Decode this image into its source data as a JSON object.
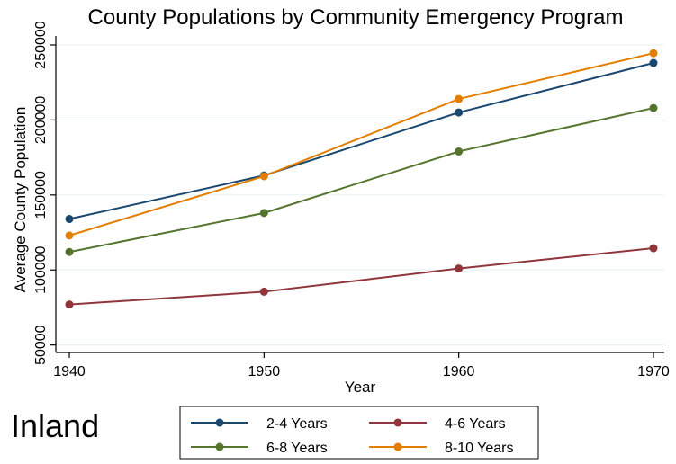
{
  "chart_data": {
    "type": "line",
    "title": "County Populations by Community Emergency Program",
    "xlabel": "Year",
    "ylabel": "Average County Population",
    "x": [
      1940,
      1950,
      1960,
      1970
    ],
    "x_ticks": [
      "1940",
      "1950",
      "1960",
      "1970"
    ],
    "xlim": [
      1940,
      1970
    ],
    "y_ticks": [
      50000,
      100000,
      150000,
      200000,
      250000
    ],
    "y_tick_labels": [
      "50000",
      "100000",
      "150000",
      "200000",
      "250000"
    ],
    "ylim": [
      45000,
      256000
    ],
    "grid": true,
    "legend_position": "bottom",
    "panel_label": "Inland",
    "series": [
      {
        "name": "2-4 Years",
        "color": "#1a476f",
        "values": [
          134000,
          163000,
          205000,
          238000
        ]
      },
      {
        "name": "4-6 Years",
        "color": "#90353b",
        "values": [
          77000,
          85500,
          101000,
          114500
        ]
      },
      {
        "name": "6-8 Years",
        "color": "#55752f",
        "values": [
          112000,
          138000,
          179000,
          208000
        ]
      },
      {
        "name": "8-10 Years",
        "color": "#e37e00",
        "values": [
          123000,
          162500,
          214000,
          244500
        ]
      }
    ]
  }
}
